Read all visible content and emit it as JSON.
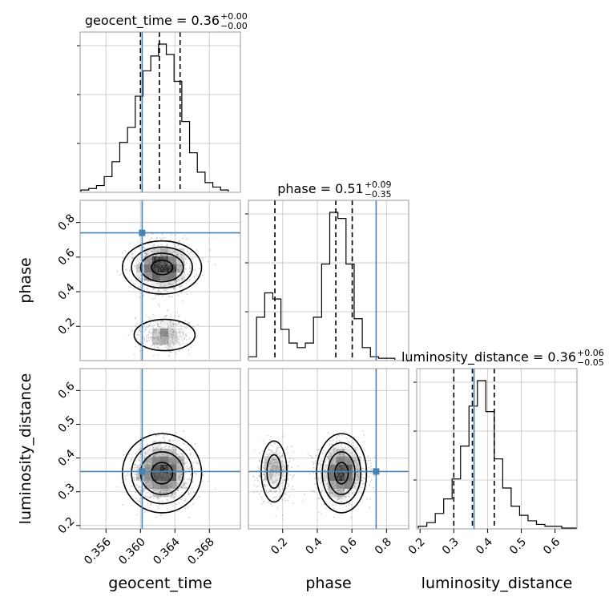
{
  "chart_data": {
    "type": "corner",
    "parameters": [
      "geocent_time",
      "phase",
      "luminosity_distance"
    ],
    "truth_color": "#4682b4",
    "titles": [
      {
        "param": "geocent_time",
        "label": "geocent_time = 0.36",
        "sup": "+0.00",
        "sub": "−0.00"
      },
      {
        "param": "phase",
        "label": "phase = 0.51",
        "sup": "+0.09",
        "sub": "−0.35"
      },
      {
        "param": "luminosity_distance",
        "label": "luminosity_distance = 0.36",
        "sup": "+0.06",
        "sub": "−0.05"
      }
    ],
    "axes": {
      "geocent_time": {
        "range": [
          0.353,
          0.3716
        ],
        "ticks": [
          0.356,
          0.36,
          0.364,
          0.368
        ],
        "tick_labels": [
          "0.356",
          "0.360",
          "0.364",
          "0.368"
        ],
        "xlabel": "geocent_time"
      },
      "phase": {
        "range": [
          0.002,
          0.928
        ],
        "ticks": [
          0.2,
          0.4,
          0.6,
          0.8
        ],
        "tick_labels": [
          "0.2",
          "0.4",
          "0.6",
          "0.8"
        ],
        "xlabel": "phase",
        "ylabel": "phase"
      },
      "luminosity_distance": {
        "range": [
          0.19,
          0.665
        ],
        "ticks": [
          0.2,
          0.3,
          0.4,
          0.5,
          0.6
        ],
        "tick_labels": [
          "0.2",
          "0.3",
          "0.4",
          "0.5",
          "0.6"
        ],
        "xlabel": "luminosity_distance",
        "ylabel": "luminosity_distance"
      }
    },
    "truths": {
      "geocent_time": 0.3602,
      "phase": 0.74,
      "luminosity_distance": 0.36
    },
    "quantiles": {
      "geocent_time": [
        0.36,
        0.3622,
        0.3646
      ],
      "phase": [
        0.155,
        0.507,
        0.602
      ],
      "luminosity_distance": [
        0.3,
        0.355,
        0.42
      ]
    },
    "histograms": {
      "geocent_time": {
        "edges": [
          0.3531,
          0.354,
          0.3549,
          0.3558,
          0.3567,
          0.3576,
          0.3585,
          0.3594,
          0.3603,
          0.3612,
          0.3621,
          0.363,
          0.3639,
          0.3648,
          0.3657,
          0.3666,
          0.3675,
          0.3684,
          0.3693,
          0.3702
        ],
        "counts": [
          1,
          2,
          4,
          10,
          20,
          33,
          43,
          64,
          81,
          91,
          99,
          92,
          74,
          47,
          26,
          13,
          6,
          3,
          1
        ]
      },
      "phase": {
        "edges": [
          0.002,
          0.049,
          0.096,
          0.143,
          0.19,
          0.237,
          0.284,
          0.331,
          0.378,
          0.425,
          0.472,
          0.519,
          0.566,
          0.613,
          0.66,
          0.707,
          0.754,
          0.801,
          0.848
        ],
        "counts": [
          2,
          28,
          44,
          40,
          20,
          11,
          8,
          11,
          28,
          63,
          97,
          93,
          63,
          27,
          8,
          2,
          1,
          1
        ]
      },
      "luminosity_distance": {
        "edges": [
          0.195,
          0.22,
          0.245,
          0.27,
          0.295,
          0.32,
          0.345,
          0.37,
          0.395,
          0.42,
          0.445,
          0.47,
          0.495,
          0.52,
          0.545,
          0.57,
          0.595,
          0.62,
          0.645,
          0.665
        ],
        "counts": [
          1,
          3,
          8,
          16,
          27,
          45,
          67,
          81,
          64,
          38,
          22,
          12,
          7,
          4,
          2,
          1,
          1,
          0,
          0
        ]
      }
    },
    "modes": [
      {
        "geocent_time": 0.3625,
        "phase": 0.54,
        "luminosity_distance": 0.355,
        "weight": 0.72
      },
      {
        "geocent_time": 0.3628,
        "phase": 0.15,
        "luminosity_distance": 0.36,
        "weight": 0.28
      }
    ]
  }
}
